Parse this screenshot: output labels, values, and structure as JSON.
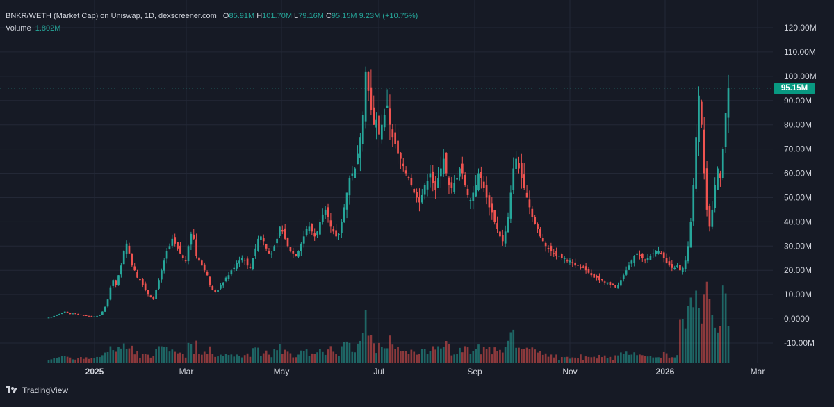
{
  "legend": {
    "title": "BNKR/WETH (Market Cap) on Uniswap, 1D, dexscreener.com",
    "open_key": "O",
    "open": "85.91M",
    "high_key": "H",
    "high": "101.70M",
    "low_key": "L",
    "low": "79.16M",
    "close_key": "C",
    "close": "95.15M",
    "change": "9.23M (+10.75%)",
    "volume_label": "Volume",
    "volume": "1.802M"
  },
  "last_price_label": "95.15M",
  "brand": "TradingView",
  "colors": {
    "up": "#26a69a",
    "down": "#ef5350",
    "background": "#161a25",
    "grid": "#232836",
    "price_tag": "#089981"
  },
  "chart_data": {
    "type": "candlestick",
    "y_ticks": [
      "120.00M",
      "110.00M",
      "100.00M",
      "90.00M",
      "80.00M",
      "70.00M",
      "60.00M",
      "50.00M",
      "40.00M",
      "30.00M",
      "20.00M",
      "10.00M",
      "0.0000",
      "-10.00M"
    ],
    "y_range": [
      -10,
      120
    ],
    "x_ticks": [
      {
        "label": "2025",
        "bold": true
      },
      {
        "label": "Mar",
        "bold": false
      },
      {
        "label": "May",
        "bold": false
      },
      {
        "label": "Jul",
        "bold": false
      },
      {
        "label": "Sep",
        "bold": false
      },
      {
        "label": "Nov",
        "bold": false
      },
      {
        "label": "2026",
        "bold": true
      },
      {
        "label": "Mar",
        "bold": false
      }
    ],
    "last_close": 95.15,
    "close_series_millions": [
      0.5,
      0.8,
      1.2,
      1.5,
      2.0,
      2.5,
      3.0,
      2.5,
      2.0,
      2.2,
      2.0,
      1.8,
      1.5,
      1.5,
      1.2,
      1.2,
      1.0,
      1.0,
      1.2,
      1.5,
      3,
      5,
      8,
      13,
      16,
      14,
      18,
      22,
      28,
      31,
      27,
      22,
      20,
      17,
      16,
      14,
      12,
      10,
      9,
      8,
      12,
      16,
      20,
      24,
      28,
      30,
      33,
      31,
      29,
      27,
      25,
      24,
      30,
      35,
      33,
      26,
      24,
      22,
      20,
      18,
      14,
      12,
      11,
      12,
      14,
      15,
      17,
      18,
      20,
      21,
      23,
      24,
      25,
      24,
      22,
      21,
      25,
      29,
      33,
      34,
      32,
      29,
      27,
      27,
      30,
      33,
      38,
      36,
      33,
      30,
      28,
      27,
      26,
      28,
      31,
      34,
      37,
      38,
      36,
      34,
      36,
      40,
      43,
      45,
      42,
      38,
      36,
      34,
      35,
      40,
      46,
      52,
      58,
      60,
      62,
      68,
      75,
      84,
      102,
      94,
      86,
      80,
      82,
      76,
      80,
      84,
      88,
      80,
      75,
      72,
      68,
      66,
      63,
      60,
      58,
      55,
      52,
      50,
      48,
      51,
      55,
      57,
      60,
      56,
      53,
      58,
      62,
      66,
      60,
      55,
      54,
      56,
      58,
      62,
      60,
      55,
      51,
      49,
      52,
      55,
      60,
      58,
      54,
      50,
      46,
      44,
      40,
      37,
      34,
      32,
      36,
      42,
      52,
      62,
      66,
      62,
      58,
      54,
      50,
      46,
      42,
      39,
      37,
      34,
      32,
      30,
      29,
      28,
      27,
      26,
      26,
      25,
      25,
      24,
      24,
      23,
      22,
      22,
      21,
      21,
      20,
      19,
      18,
      17,
      17,
      16,
      16,
      15,
      15,
      14,
      14,
      13,
      14,
      16,
      18,
      20,
      22,
      24,
      26,
      27,
      26,
      25,
      24,
      25,
      26,
      27,
      28,
      28,
      27,
      25,
      23,
      22,
      21,
      21,
      22,
      20,
      21,
      24,
      30,
      40,
      55,
      75,
      92,
      80,
      60,
      45,
      38,
      45,
      55,
      62,
      58,
      70,
      85,
      95.15
    ]
  }
}
